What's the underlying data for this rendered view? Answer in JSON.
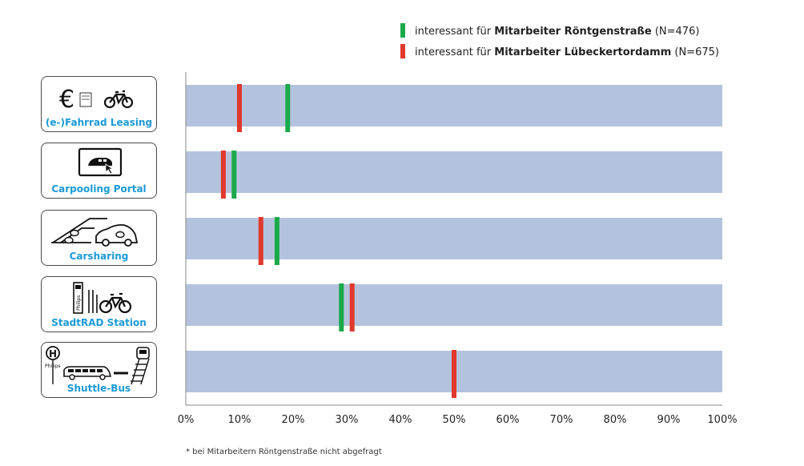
{
  "legend": [
    {
      "prefix": "interessant für ",
      "bold": "Mitarbeiter Röntgenstraße",
      "suffix": " (N=476)",
      "color": "#1aa94a"
    },
    {
      "prefix": "interessant für ",
      "bold": "Mitarbeiter Lübeckertordamm",
      "suffix": " (N=675)",
      "color": "#e0392b"
    }
  ],
  "categories": [
    {
      "label": "(e-)Fahrrad Leasing",
      "icon": "euro-document-bicycle-icon"
    },
    {
      "label": "Carpooling Portal",
      "icon": "carpooling-screen-icon"
    },
    {
      "label": "Carsharing",
      "icon": "carsharing-parking-car-icon"
    },
    {
      "label": "StadtRAD Station",
      "icon": "bike-station-icon",
      "icon_text": "Philips"
    },
    {
      "label": "Shuttle-Bus",
      "icon": "shuttle-bus-stop-icon",
      "icon_text": "Philips",
      "stop_letter": "H"
    }
  ],
  "footnote": "* bei Mitarbeitern Röntgenstraße nicht abgefragt",
  "chart_data": {
    "type": "bar",
    "categories": [
      "(e-)Fahrrad Leasing",
      "Carpooling Portal",
      "Carsharing",
      "StadtRAD Station",
      "Shuttle-Bus"
    ],
    "series": [
      {
        "name": "interessant für Mitarbeiter Röntgenstraße (N=476)",
        "values": [
          19,
          9,
          17,
          29,
          0
        ],
        "color": "#1aa94a"
      },
      {
        "name": "interessant für Mitarbeiter Lübeckertordamm (N=675)",
        "values": [
          10,
          7,
          14,
          31,
          50
        ],
        "color": "#e0392b"
      }
    ],
    "xlim": [
      0,
      100
    ],
    "xticks": [
      "0%",
      "10%",
      "20%",
      "30%",
      "40%",
      "50%",
      "60%",
      "70%",
      "80%",
      "90%",
      "100%"
    ],
    "track_color": "#b4c3dd",
    "legend_position": "top-right",
    "grid": false
  }
}
